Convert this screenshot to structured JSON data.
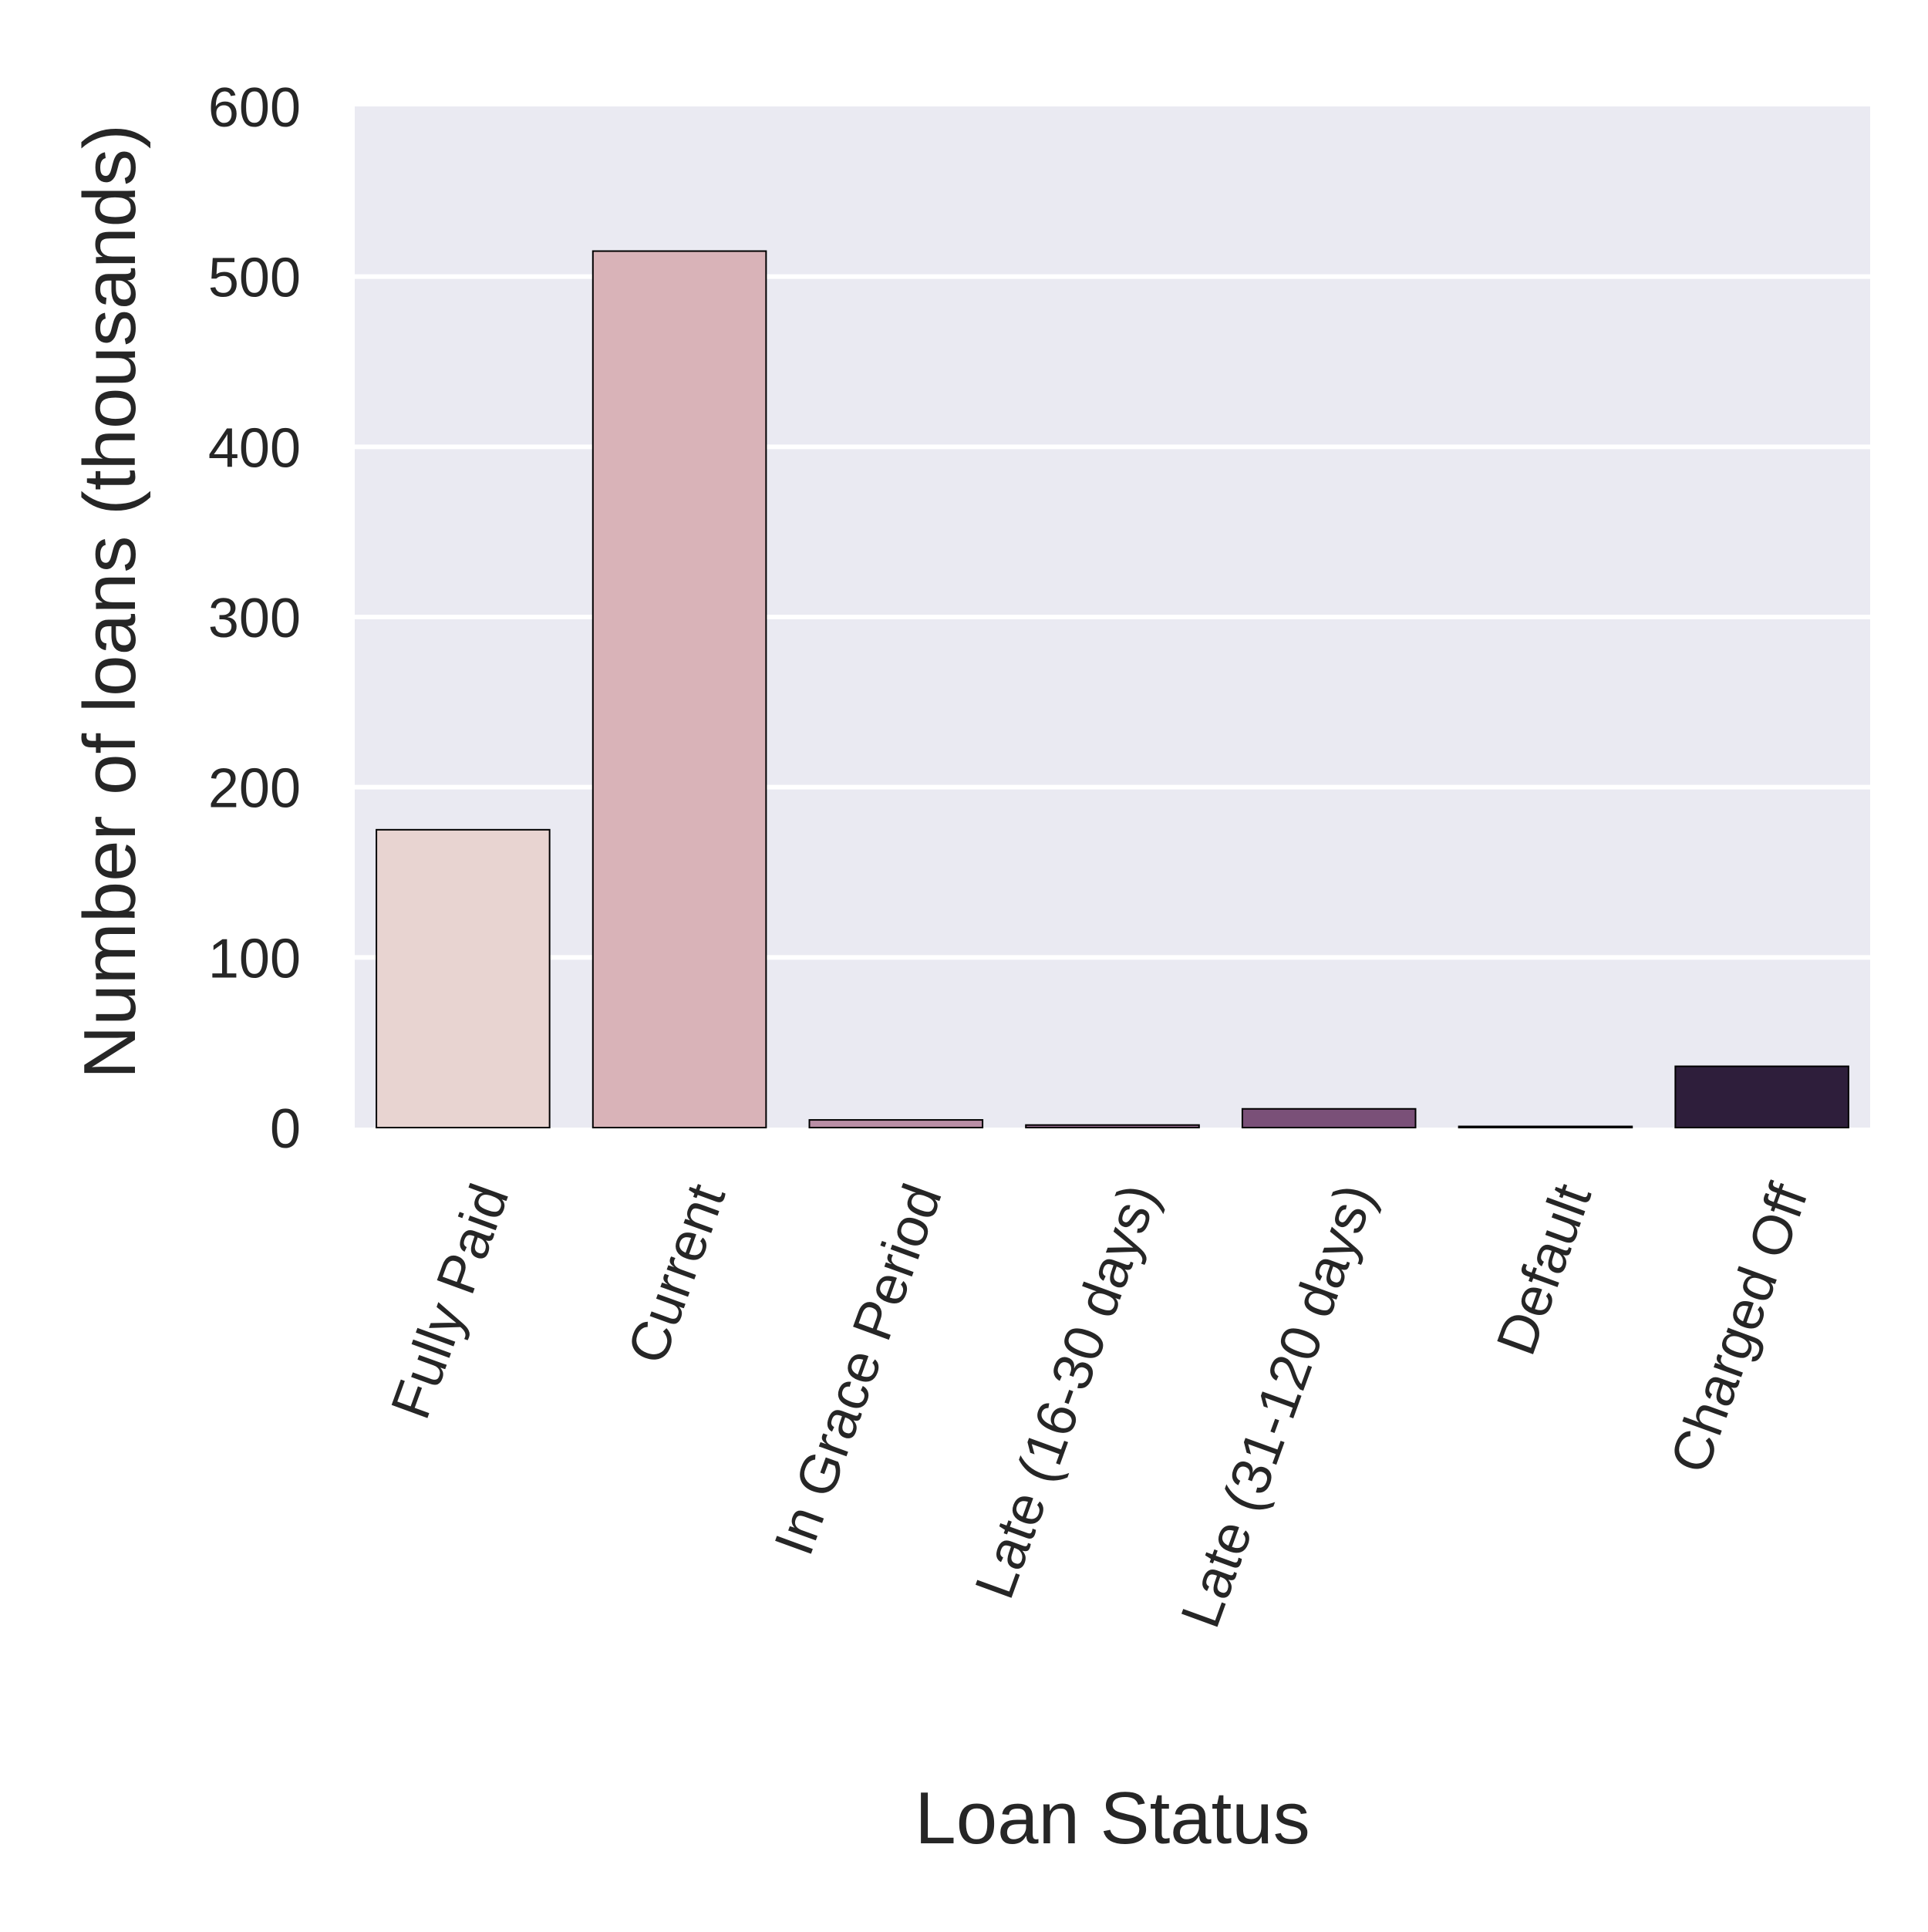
{
  "chart_data": {
    "type": "bar",
    "title": "",
    "xlabel": "Loan Status",
    "ylabel": "Number of loans (thousands)",
    "ylim": [
      0,
      600
    ],
    "yticks": [
      0,
      100,
      200,
      300,
      400,
      500,
      600
    ],
    "categories": [
      "Fully Paid",
      "Current",
      "In Grace Period",
      "Late (16-30 days)",
      "Late (31-120 days)",
      "Default",
      "Charged Off"
    ],
    "values": [
      175,
      515,
      4.5,
      1.5,
      11,
      0.3,
      36
    ],
    "colors": [
      "#e8d4d1",
      "#d9b3b8",
      "#b98ea5",
      "#9a6d92",
      "#7a5078",
      "#533555",
      "#2e1e3b"
    ],
    "grid": true,
    "background": "#eaeaf2",
    "gridColor": "#ffffff",
    "legend": "none"
  }
}
